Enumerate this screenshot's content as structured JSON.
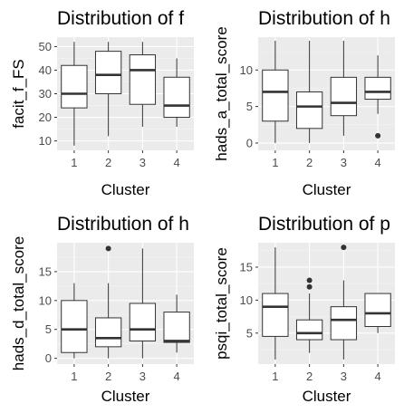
{
  "chart_data": [
    {
      "type": "boxplot",
      "title": "Distribution of f",
      "xlabel": "Cluster",
      "ylabel": "facit_f_FS",
      "categories": [
        "1",
        "2",
        "3",
        "4"
      ],
      "yticks": [
        10,
        20,
        30,
        40,
        50
      ],
      "ylim": [
        6,
        54
      ],
      "grid": true,
      "boxes": [
        {
          "category": "1",
          "min": 8,
          "q1": 24,
          "median": 30,
          "q3": 42,
          "max": 52,
          "outliers": []
        },
        {
          "category": "2",
          "min": 12,
          "q1": 30,
          "median": 38,
          "q3": 48,
          "max": 52,
          "outliers": []
        },
        {
          "category": "3",
          "min": 16,
          "q1": 25.5,
          "median": 40,
          "q3": 46.5,
          "max": 52,
          "outliers": []
        },
        {
          "category": "4",
          "min": 16,
          "q1": 20,
          "median": 25,
          "q3": 37,
          "max": 45,
          "outliers": []
        }
      ]
    },
    {
      "type": "boxplot",
      "title": "Distribution of h",
      "xlabel": "Cluster",
      "ylabel": "hads_a_total_score",
      "categories": [
        "1",
        "2",
        "3",
        "4"
      ],
      "yticks": [
        0,
        5,
        10
      ],
      "ylim": [
        -1,
        14.5
      ],
      "grid": true,
      "boxes": [
        {
          "category": "1",
          "min": 0,
          "q1": 3,
          "median": 7,
          "q3": 10,
          "max": 14,
          "outliers": []
        },
        {
          "category": "2",
          "min": 0,
          "q1": 2,
          "median": 5,
          "q3": 7,
          "max": 14,
          "outliers": []
        },
        {
          "category": "3",
          "min": 1,
          "q1": 3.75,
          "median": 5.5,
          "q3": 9,
          "max": 14,
          "outliers": []
        },
        {
          "category": "4",
          "min": 4,
          "q1": 6,
          "median": 7,
          "q3": 9,
          "max": 12,
          "outliers": [
            1
          ]
        }
      ]
    },
    {
      "type": "boxplot",
      "title": "Distribution of h",
      "xlabel": "Cluster",
      "ylabel": "hads_d_total_score",
      "categories": [
        "1",
        "2",
        "3",
        "4"
      ],
      "yticks": [
        0,
        5,
        10,
        15
      ],
      "ylim": [
        -1,
        20
      ],
      "grid": true,
      "boxes": [
        {
          "category": "1",
          "min": 0,
          "q1": 1,
          "median": 5,
          "q3": 10,
          "max": 13,
          "outliers": []
        },
        {
          "category": "2",
          "min": 0,
          "q1": 2,
          "median": 3.5,
          "q3": 7,
          "max": 13,
          "outliers": [
            19
          ]
        },
        {
          "category": "3",
          "min": 0,
          "q1": 3,
          "median": 5,
          "q3": 9.5,
          "max": 19,
          "outliers": []
        },
        {
          "category": "4",
          "min": 1,
          "q1": 2.75,
          "median": 3,
          "q3": 8,
          "max": 11,
          "outliers": []
        }
      ]
    },
    {
      "type": "boxplot",
      "title": "Distribution of p",
      "xlabel": "Cluster",
      "ylabel": "psqi_total_score",
      "categories": [
        "1",
        "2",
        "3",
        "4"
      ],
      "yticks": [
        5,
        10,
        15
      ],
      "ylim": [
        0.3,
        18.7
      ],
      "grid": true,
      "boxes": [
        {
          "category": "1",
          "min": 1,
          "q1": 4.5,
          "median": 9,
          "q3": 11,
          "max": 18,
          "outliers": []
        },
        {
          "category": "2",
          "min": 2,
          "q1": 4,
          "median": 5,
          "q3": 7,
          "max": 11,
          "outliers": [
            12,
            13
          ]
        },
        {
          "category": "3",
          "min": 1,
          "q1": 4,
          "median": 7,
          "q3": 9,
          "max": 13,
          "outliers": [
            18
          ]
        },
        {
          "category": "4",
          "min": 5,
          "q1": 6,
          "median": 8,
          "q3": 11,
          "max": 11,
          "outliers": []
        }
      ]
    }
  ]
}
